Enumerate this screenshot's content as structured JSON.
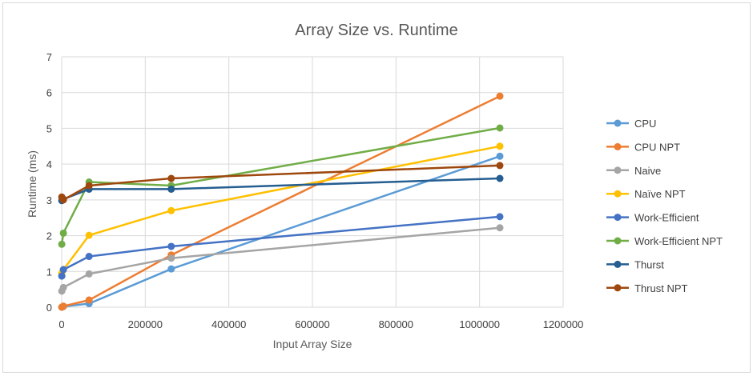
{
  "chart_data": {
    "type": "line",
    "title": "Array Size vs. Runtime",
    "xlabel": "Input Array Size",
    "ylabel": "Runtime (ms)",
    "xlim": [
      0,
      1200000
    ],
    "ylim": [
      0,
      7
    ],
    "xticks": [
      "0",
      "200000",
      "400000",
      "600000",
      "800000",
      "1000000",
      "1200000"
    ],
    "yticks": [
      "0",
      "1",
      "2",
      "3",
      "4",
      "5",
      "6",
      "7"
    ],
    "grid": true,
    "legend_position": "right",
    "x": [
      256,
      4096,
      65536,
      262144,
      1048576
    ],
    "series": [
      {
        "name": "CPU",
        "color": "#5b9bd5",
        "values": [
          0.0,
          0.02,
          0.1,
          1.07,
          4.22
        ]
      },
      {
        "name": "CPU NPT",
        "color": "#ed7d31",
        "values": [
          0.0,
          0.03,
          0.2,
          1.46,
          5.9
        ]
      },
      {
        "name": "Naive",
        "color": "#a5a5a5",
        "values": [
          0.45,
          0.55,
          0.93,
          1.37,
          2.22
        ]
      },
      {
        "name": "Naïve NPT",
        "color": "#ffc000",
        "values": [
          0.95,
          1.05,
          2.01,
          2.7,
          4.5
        ]
      },
      {
        "name": "Work-Efficient",
        "color": "#4472c4",
        "values": [
          0.87,
          1.05,
          1.42,
          1.7,
          2.53
        ]
      },
      {
        "name": "Work-Efficient NPT",
        "color": "#70ad47",
        "values": [
          1.76,
          2.07,
          3.5,
          3.4,
          5.01
        ]
      },
      {
        "name": "Thurst",
        "color": "#255e91",
        "values": [
          2.98,
          3.02,
          3.3,
          3.3,
          3.6
        ]
      },
      {
        "name": "Thrust NPT",
        "color": "#9e480e",
        "values": [
          3.08,
          3.0,
          3.4,
          3.6,
          3.96
        ]
      }
    ]
  }
}
